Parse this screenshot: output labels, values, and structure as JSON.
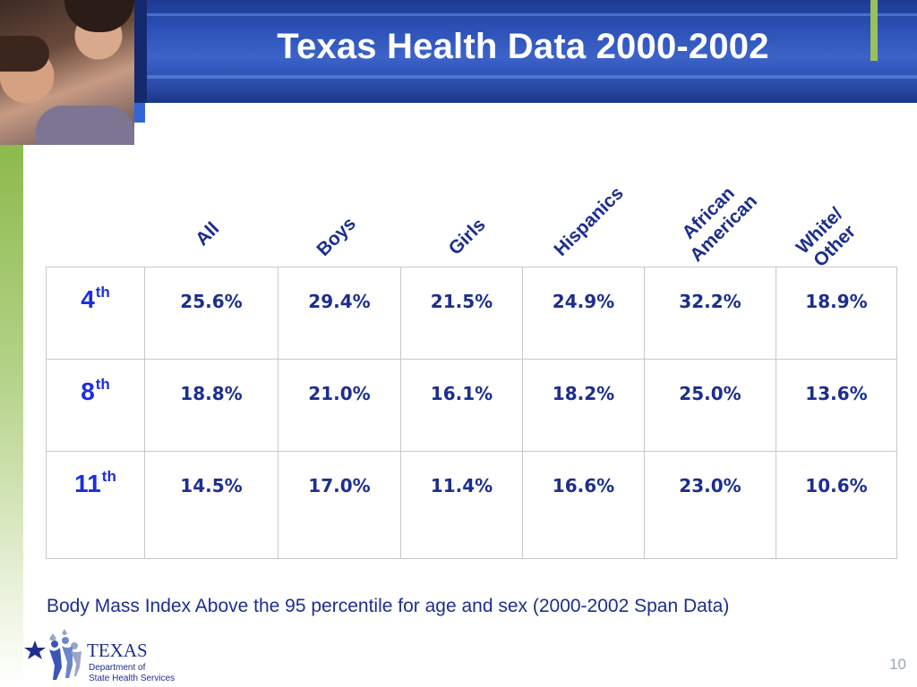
{
  "slide": {
    "title": "Texas Health Data 2000-2002",
    "caption": "Body Mass Index Above the 95 percentile for age and sex (2000-2002 Span Data)",
    "page_number": "10"
  },
  "logo": {
    "name": "TEXAS",
    "line1": "Department of",
    "line2": "State Health Services"
  },
  "table": {
    "columns": [
      "All",
      "Boys",
      "Girls",
      "Hispanics",
      "African\nAmerican",
      "White/\nOther"
    ],
    "rows": [
      {
        "grade": "4",
        "suffix": "th",
        "values": [
          "25.6%",
          "29.4%",
          "21.5%",
          "24.9%",
          "32.2%",
          "18.9%"
        ]
      },
      {
        "grade": "8",
        "suffix": "th",
        "values": [
          "18.8%",
          "21.0%",
          "16.1%",
          "18.2%",
          "25.0%",
          "13.6%"
        ]
      },
      {
        "grade": "11",
        "suffix": "th",
        "values": [
          "14.5%",
          "17.0%",
          "11.4%",
          "16.6%",
          "23.0%",
          "10.6%"
        ]
      }
    ]
  },
  "colors": {
    "header_blue": "#2a4fb5",
    "text_navy": "#1c2e8f",
    "grade_blue": "#1a2ee0",
    "accent_green": "#8cba4c"
  }
}
